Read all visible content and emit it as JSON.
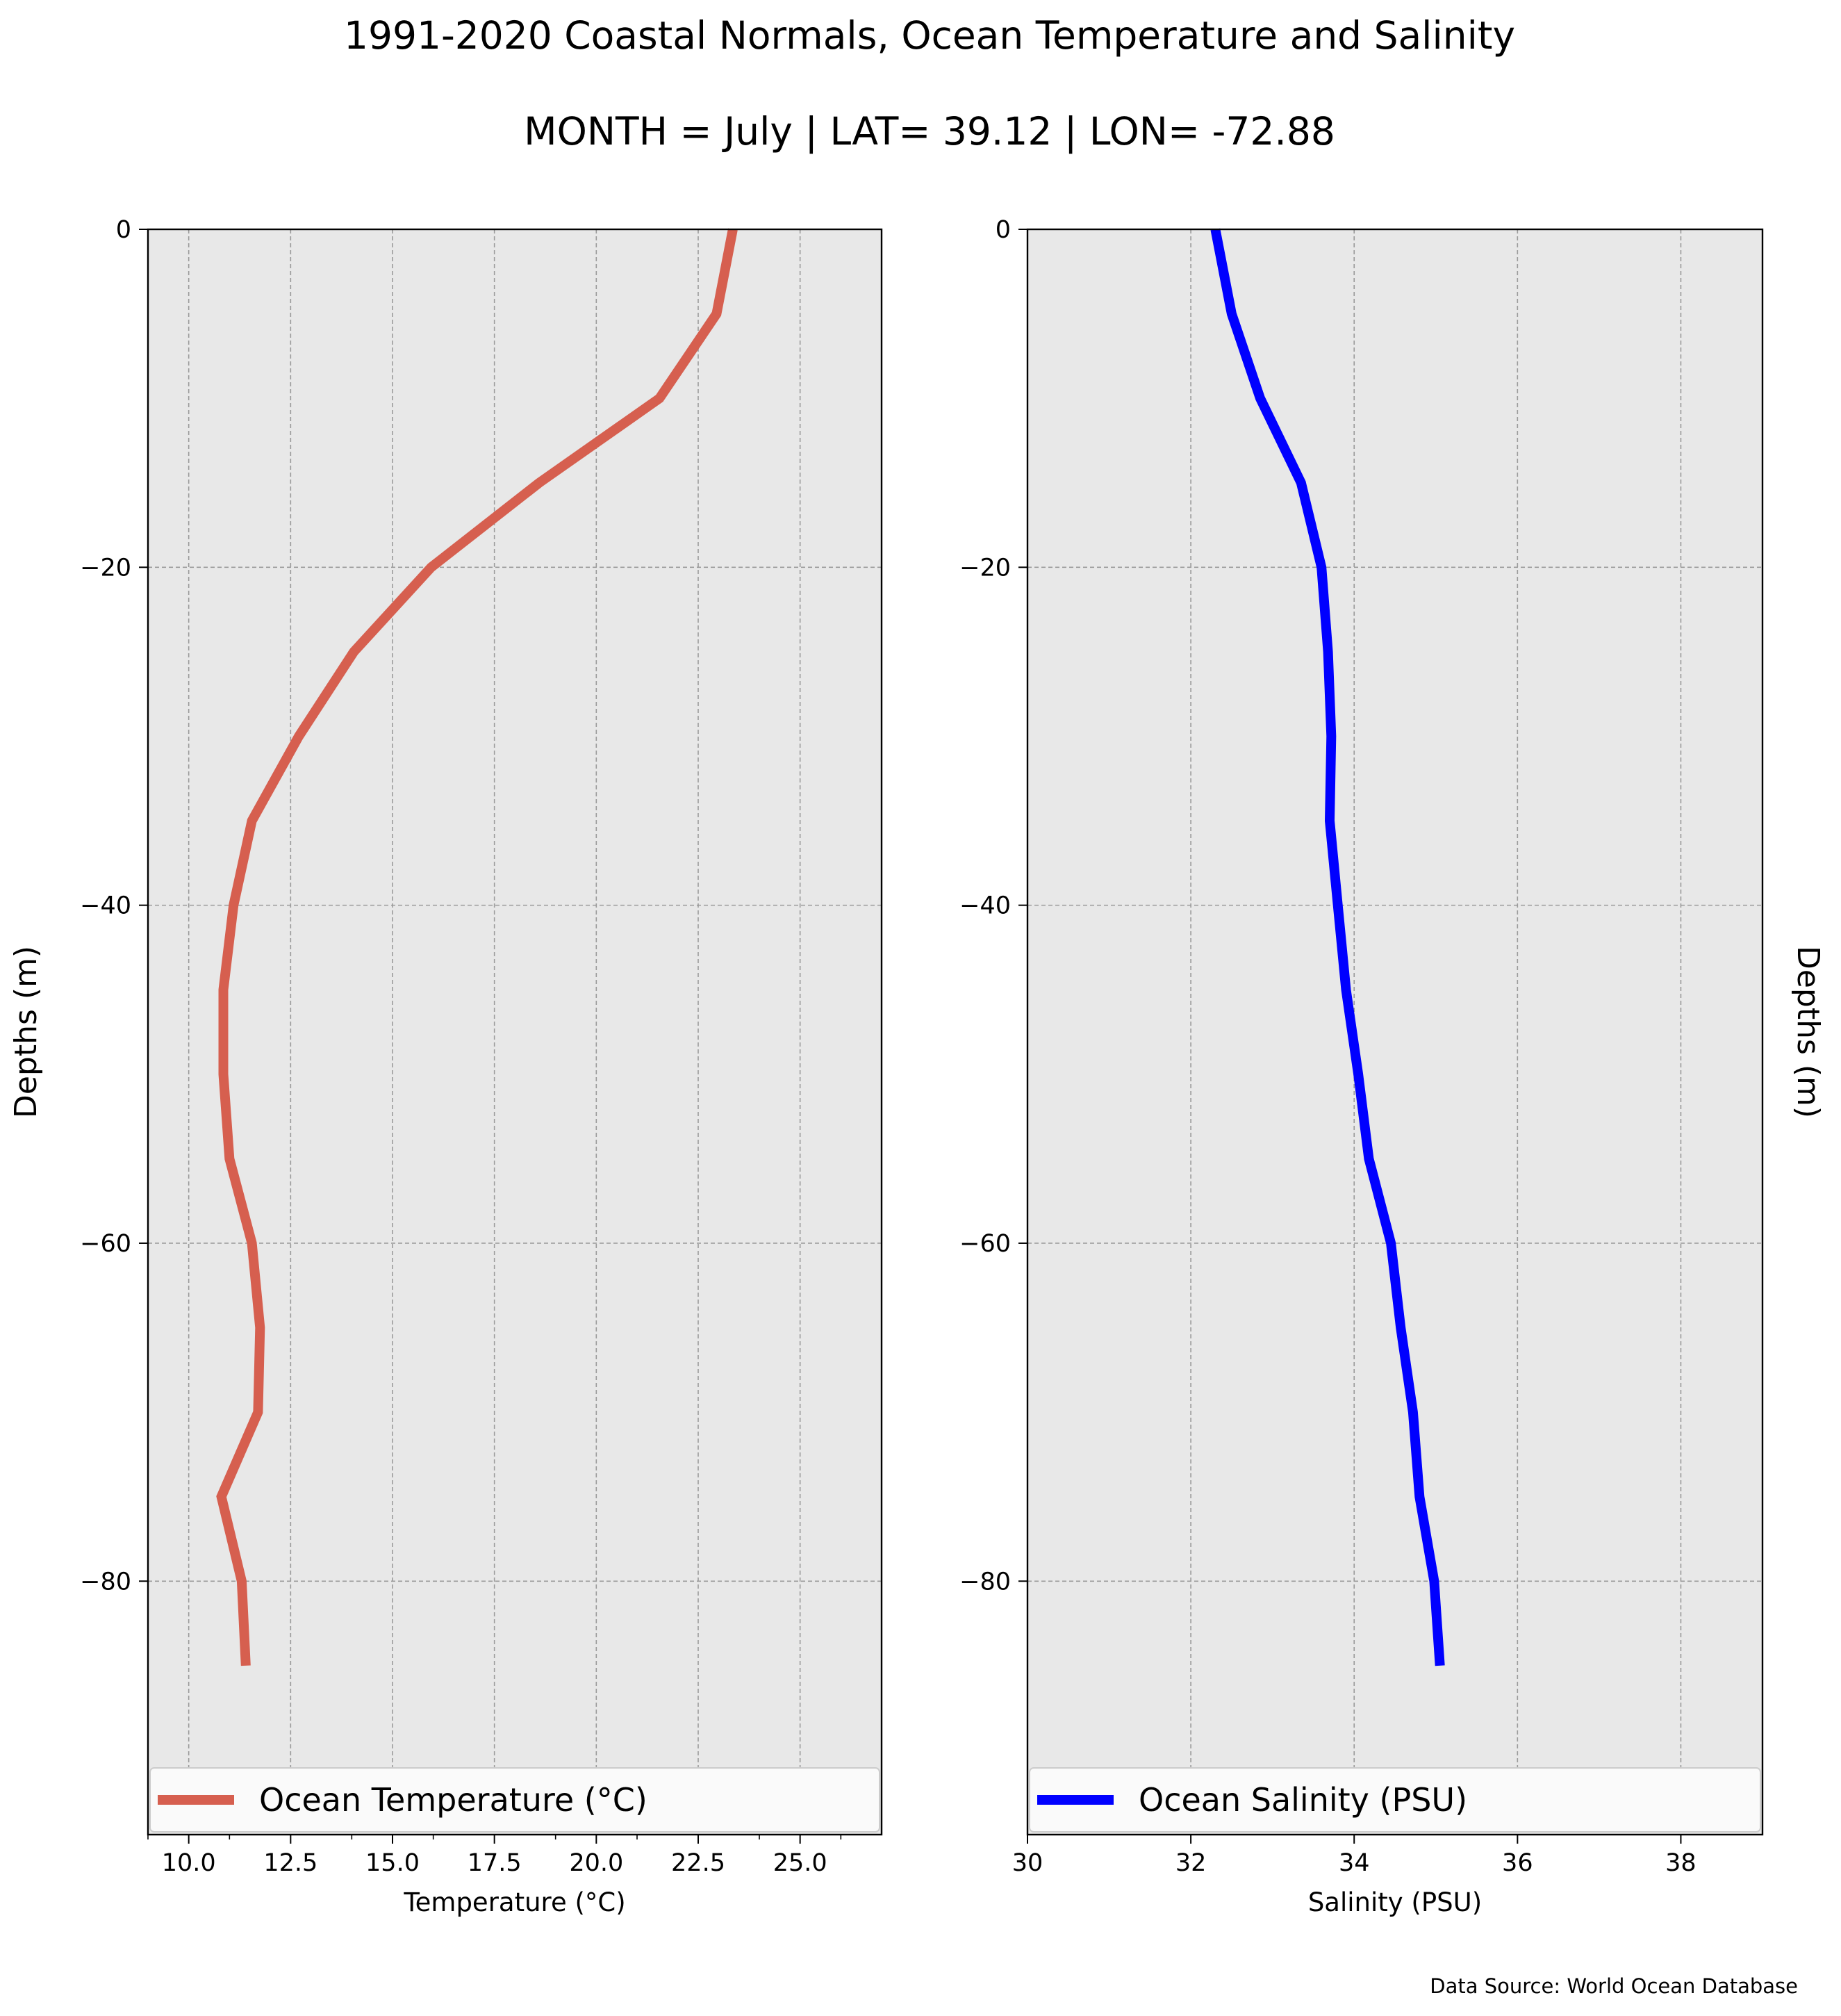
{
  "figure": {
    "title": "1991-2020 Coastal Normals, Ocean Temperature and Salinity",
    "subtitle": "MONTH = July | LAT= 39.12 | LON= -72.88",
    "source_note": "Data Source: World Ocean Database"
  },
  "chart_data": [
    {
      "type": "line",
      "xlabel": "Temperature ($^\\circ$C)",
      "xlabel_display": "Temperature (°C)",
      "ylabel": "Depths (m)",
      "xlim": [
        9,
        27
      ],
      "ylim": [
        -95,
        0
      ],
      "x_ticks": [
        10.0,
        12.5,
        15.0,
        17.5,
        20.0,
        22.5,
        25.0
      ],
      "x_tick_labels": [
        "10.0",
        "12.5",
        "15.0",
        "17.5",
        "20.0",
        "22.5",
        "25.0"
      ],
      "x_minor_ticks": [
        9,
        11,
        14,
        16,
        19,
        21,
        24,
        26
      ],
      "y_ticks": [
        0,
        -20,
        -40,
        -60,
        -80
      ],
      "y_tick_labels": [
        "0",
        "−20",
        "−40",
        "−60",
        "−80"
      ],
      "grid": true,
      "legend_position": "bottom",
      "series": [
        {
          "name": "Ocean Temperature ($^\\circ$C)",
          "name_display": "Ocean Temperature (°C)",
          "color": "#d65f4f",
          "x": [
            23.35,
            22.95,
            21.55,
            18.6,
            15.95,
            14.05,
            12.7,
            11.55,
            11.1,
            10.85,
            10.85,
            11.0,
            11.55,
            11.75,
            11.7,
            10.8,
            11.3,
            11.4
          ],
          "y": [
            0,
            -5,
            -10,
            -15,
            -20,
            -25,
            -30,
            -35,
            -40,
            -45,
            -50,
            -55,
            -60,
            -65,
            -70,
            -75,
            -80,
            -85
          ]
        }
      ]
    },
    {
      "type": "line",
      "xlabel": "Salinity (PSU)",
      "ylabel": "Depths (m)",
      "xlim": [
        30,
        39
      ],
      "ylim": [
        -95,
        0
      ],
      "x_ticks": [
        30,
        32,
        34,
        36,
        38
      ],
      "x_tick_labels": [
        "30",
        "32",
        "34",
        "36",
        "38"
      ],
      "y_ticks": [
        0,
        -20,
        -40,
        -60,
        -80
      ],
      "y_tick_labels": [
        "0",
        "−20",
        "−40",
        "−60",
        "−80"
      ],
      "grid": true,
      "legend_position": "bottom",
      "series": [
        {
          "name": "Ocean Salinity (PSU)",
          "color": "#0000ff",
          "x": [
            32.3,
            32.5,
            32.85,
            33.35,
            33.6,
            33.68,
            33.72,
            33.7,
            33.8,
            33.9,
            34.05,
            34.18,
            34.45,
            34.57,
            34.72,
            34.8,
            34.98,
            35.05
          ],
          "y": [
            0,
            -5,
            -10,
            -15,
            -20,
            -25,
            -30,
            -35,
            -40,
            -45,
            -50,
            -55,
            -60,
            -65,
            -70,
            -75,
            -80,
            -85
          ]
        }
      ]
    }
  ],
  "colors": {
    "panel_background": "#e8e8e8",
    "grid": "#9a9a9a",
    "legend_background": "#fafafa",
    "legend_border": "#cccccc"
  }
}
